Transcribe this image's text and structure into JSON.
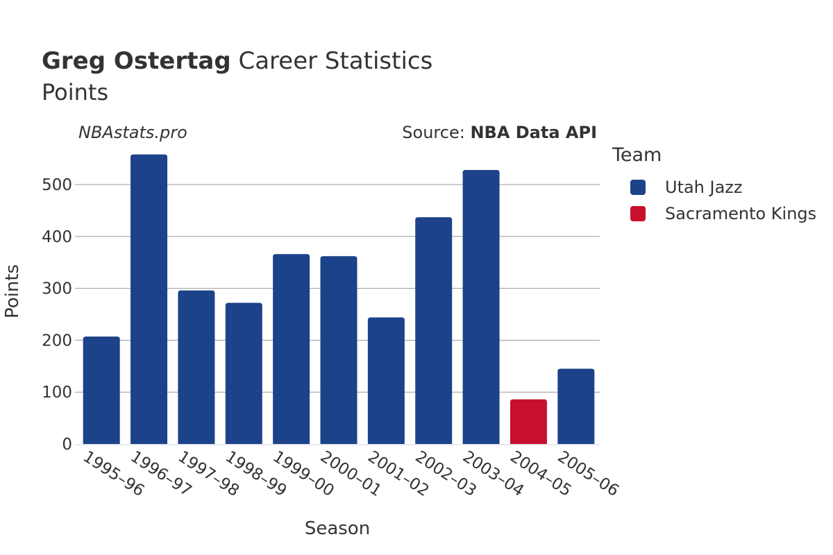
{
  "header": {
    "title_bold": "Greg Ostertag",
    "title_rest": " Career Statistics",
    "subtitle": "Points",
    "watermark": "NBAstats.pro",
    "source_prefix": "Source: ",
    "source_name": "NBA Data API"
  },
  "legend": {
    "title": "Team",
    "items": [
      {
        "label": "Utah Jazz",
        "color": "#1c428a"
      },
      {
        "label": "Sacramento Kings",
        "color": "#c8102e"
      }
    ]
  },
  "chart_data": {
    "type": "bar",
    "title": "Greg Ostertag Career Statistics",
    "subtitle": "Points",
    "xlabel": "Season",
    "ylabel": "Points",
    "ylim": [
      0,
      560
    ],
    "yticks": [
      0,
      100,
      200,
      300,
      400,
      500
    ],
    "grid": true,
    "legend_position": "right",
    "categories": [
      "1995–96",
      "1996–97",
      "1997–98",
      "1998–99",
      "1999–00",
      "2000–01",
      "2001–02",
      "2002–03",
      "2003–04",
      "2004–05",
      "2005–06"
    ],
    "values": [
      207,
      558,
      296,
      272,
      366,
      362,
      244,
      437,
      528,
      86,
      145
    ],
    "teams": [
      "Utah Jazz",
      "Utah Jazz",
      "Utah Jazz",
      "Utah Jazz",
      "Utah Jazz",
      "Utah Jazz",
      "Utah Jazz",
      "Utah Jazz",
      "Utah Jazz",
      "Sacramento Kings",
      "Utah Jazz"
    ]
  }
}
